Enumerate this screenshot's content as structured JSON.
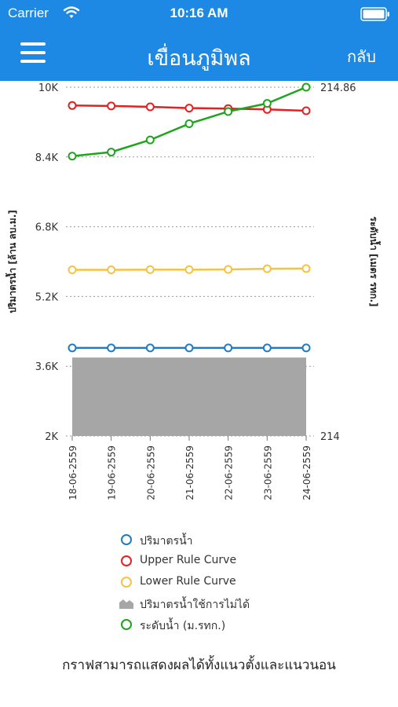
{
  "status_bar": {
    "carrier": "Carrier",
    "time": "10:16 AM"
  },
  "nav": {
    "title": "เขื่อนภูมิพล",
    "back_label": "กลับ"
  },
  "colors": {
    "header": "#1E88E5",
    "volume": "#1E7BC4",
    "upper": "#E52020",
    "lower": "#F5C342",
    "unusable": "#A6A6A6",
    "level": "#1EA51E"
  },
  "chart_data": {
    "type": "line",
    "categories": [
      "18-06-2559",
      "19-06-2559",
      "20-06-2559",
      "21-06-2559",
      "22-06-2559",
      "23-06-2559",
      "24-06-2559"
    ],
    "y_left": {
      "label": "ปริมาตรน้ำ [ล้าน ลบ.ม.]",
      "min": 2000,
      "max": 10000,
      "ticks": [
        2000,
        3600,
        5200,
        6800,
        8400,
        10000
      ],
      "tick_labels": [
        "2K",
        "3.6K",
        "5.2K",
        "6.8K",
        "8.4K",
        "10K"
      ]
    },
    "y_right": {
      "label": "ระดับน้ำ [เมตร รทก.]",
      "min": 214,
      "max": 214.86,
      "tick_labels": [
        "214",
        "214.86"
      ]
    },
    "grid": "dotted horizontal",
    "series": [
      {
        "name": "ปริมาตรน้ำ",
        "kind": "line",
        "axis": "left",
        "color_key": "volume",
        "values": [
          4020,
          4020,
          4020,
          4020,
          4020,
          4020,
          4020
        ]
      },
      {
        "name": "Upper Rule Curve",
        "kind": "line",
        "axis": "left",
        "color_key": "upper",
        "values": [
          9580,
          9570,
          9550,
          9520,
          9510,
          9490,
          9460
        ]
      },
      {
        "name": "Lower Rule Curve",
        "kind": "line",
        "axis": "left",
        "color_key": "lower",
        "values": [
          5810,
          5810,
          5815,
          5815,
          5820,
          5835,
          5840
        ]
      },
      {
        "name": "ปริมาตรน้ำใช้การไม่ได้",
        "kind": "area",
        "axis": "left",
        "color_key": "unusable",
        "values": [
          3800,
          3800,
          3800,
          3800,
          3800,
          3800,
          3800
        ]
      },
      {
        "name": "ระดับน้ำ (ม.รทก.)",
        "kind": "line",
        "axis": "right",
        "color_key": "level",
        "values": [
          214.69,
          214.7,
          214.73,
          214.77,
          214.8,
          214.82,
          214.86
        ]
      }
    ]
  },
  "legend": [
    {
      "label": "ปริมาตรน้ำ",
      "kind": "line",
      "color_key": "volume"
    },
    {
      "label": "Upper Rule Curve",
      "kind": "line",
      "color_key": "upper"
    },
    {
      "label": "Lower Rule Curve",
      "kind": "line",
      "color_key": "lower"
    },
    {
      "label": "ปริมาตรน้ำใช้การไม่ได้",
      "kind": "area",
      "color_key": "unusable"
    },
    {
      "label": "ระดับน้ำ (ม.รทก.)",
      "kind": "line",
      "color_key": "level"
    }
  ],
  "footer": {
    "note": "กราฟสามารถแสดงผลได้ทั้งแนวตั้งและแนวนอน"
  }
}
